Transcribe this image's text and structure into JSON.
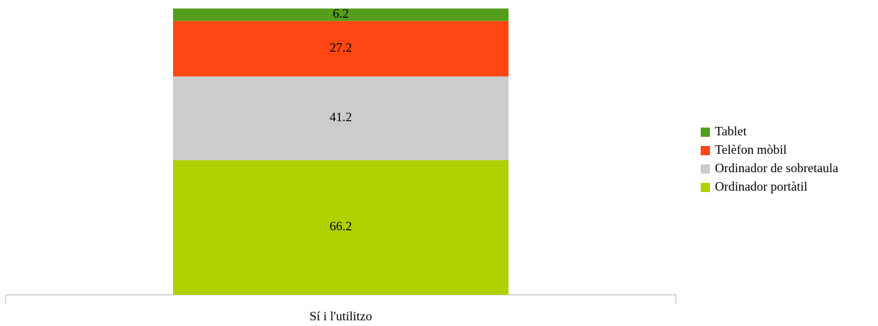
{
  "chart_data": {
    "type": "stacked_bar",
    "categories": [
      "Sí i l'utilitzo"
    ],
    "series": [
      {
        "name": "Ordinador portàtil",
        "color": "#b0d000",
        "values": [
          66.2
        ]
      },
      {
        "name": "Ordinador de sobretaula",
        "color": "#cccccc",
        "values": [
          41.2
        ]
      },
      {
        "name": "Telèfon mòbil",
        "color": "#ff4612",
        "values": [
          27.2
        ]
      },
      {
        "name": "Tablet",
        "color": "#579d1c",
        "values": [
          6.2
        ]
      }
    ],
    "legend": "right"
  }
}
